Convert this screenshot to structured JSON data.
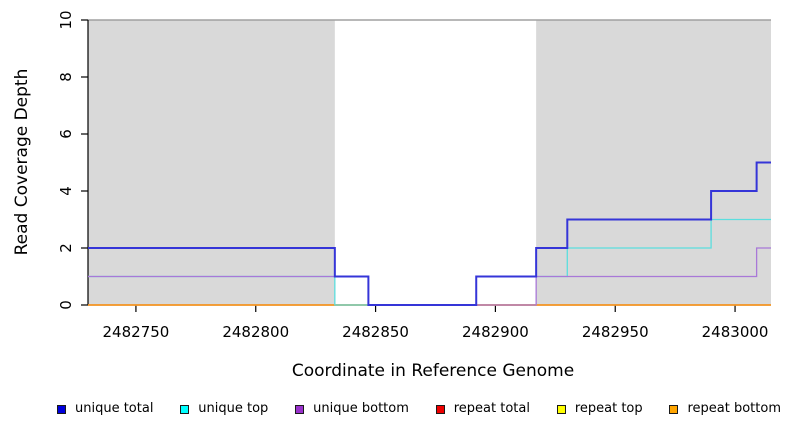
{
  "chart_data": {
    "type": "line",
    "subtype": "step-coverage",
    "title": "",
    "xlabel": "Coordinate in Reference Genome",
    "ylabel": "Read Coverage Depth",
    "xlim": [
      2482730,
      2483015
    ],
    "ylim": [
      0,
      10
    ],
    "x_ticks": [
      2482750,
      2482800,
      2482850,
      2482900,
      2482950,
      2483000
    ],
    "y_ticks": [
      0,
      2,
      4,
      6,
      8,
      10
    ],
    "grid": false,
    "shade_color": "#d9d9d9",
    "top_rule_color": "#a0a0a0",
    "axis_color": "#000000",
    "shaded_regions": [
      {
        "x1": 2482730,
        "x2": 2482833
      },
      {
        "x1": 2482917,
        "x2": 2483015
      }
    ],
    "x_end": 2483015,
    "series": [
      {
        "name": "repeat top",
        "legend_color": "#FFFF00",
        "line_color": "#FFE800",
        "steps": [
          [
            2482730,
            0
          ]
        ]
      },
      {
        "name": "repeat total",
        "legend_color": "#EE0000",
        "line_color": "#E05570",
        "steps": [
          [
            2482730,
            0
          ]
        ]
      },
      {
        "name": "repeat bottom",
        "legend_color": "#FFA500",
        "line_color": "#FF9D24",
        "steps": [
          [
            2482730,
            0
          ]
        ]
      },
      {
        "name": "unique top",
        "legend_color": "#00FFFF",
        "line_color": "#5CDEDE",
        "steps": [
          [
            2482730,
            1
          ],
          [
            2482833,
            0
          ],
          [
            2482892,
            1
          ],
          [
            2482930,
            2
          ],
          [
            2482990,
            3
          ]
        ]
      },
      {
        "name": "unique bottom",
        "legend_color": "#9932CC",
        "line_color": "#A978D8",
        "steps": [
          [
            2482730,
            1
          ],
          [
            2482847,
            0
          ],
          [
            2482917,
            1
          ],
          [
            2483009,
            2
          ]
        ]
      },
      {
        "name": "unique total",
        "legend_color": "#0000DD",
        "line_color": "#3535D8",
        "steps": [
          [
            2482730,
            2
          ],
          [
            2482833,
            1
          ],
          [
            2482847,
            0
          ],
          [
            2482892,
            1
          ],
          [
            2482917,
            2
          ],
          [
            2482930,
            3
          ],
          [
            2482990,
            4
          ],
          [
            2483009,
            5
          ]
        ]
      }
    ]
  },
  "legend": {
    "items": [
      {
        "label": "unique total",
        "color": "#0000DD"
      },
      {
        "label": "unique top",
        "color": "#00FFFF"
      },
      {
        "label": "unique bottom",
        "color": "#9932CC"
      },
      {
        "label": "repeat total",
        "color": "#EE0000"
      },
      {
        "label": "repeat top",
        "color": "#FFFF00"
      },
      {
        "label": "repeat bottom",
        "color": "#FFA500"
      }
    ]
  }
}
